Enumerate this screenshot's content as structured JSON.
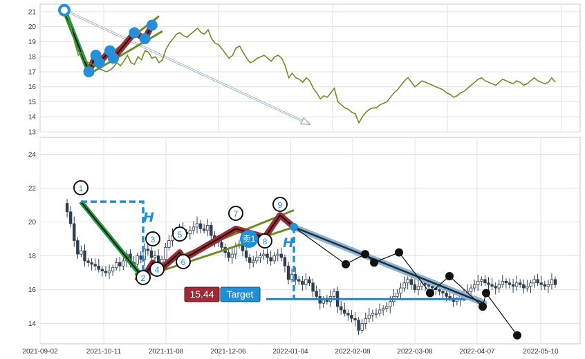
{
  "chart_data": [
    {
      "type": "line",
      "name": "overview",
      "ylim": [
        13,
        21.5
      ],
      "y_ticks": [
        "13",
        "14",
        "15",
        "16",
        "17",
        "18",
        "19",
        "20",
        "21"
      ],
      "grid": true,
      "series_color": "#6b8e23",
      "series": [
        {
          "values": [
            21.1,
            20.6,
            19.9,
            18.9,
            18.1,
            18.3,
            17.7,
            17.6,
            17.5,
            17.4,
            17.2,
            17.1,
            17.0,
            17.1,
            17.3,
            17.6,
            17.4,
            17.7,
            18.1,
            17.6,
            17.5,
            18.0,
            17.8,
            18.4,
            18.3,
            17.9,
            18.0,
            17.6,
            17.8,
            18.5,
            18.9,
            19.2,
            19.5,
            19.6,
            19.4,
            19.3,
            19.5,
            19.7,
            19.9,
            19.6,
            19.5,
            19.8,
            19.2,
            18.9,
            18.8,
            18.5,
            18.2,
            17.9,
            18.1,
            18.6,
            18.7,
            18.3,
            17.9,
            17.6,
            17.7,
            17.9,
            18.0,
            18.1,
            17.9,
            17.7,
            18.0,
            18.1,
            17.9,
            17.4,
            16.6,
            16.9,
            16.6,
            16.5,
            16.3,
            16.6,
            16.4,
            15.9,
            15.6,
            15.2,
            15.4,
            15.3,
            15.6,
            15.9,
            15.0,
            14.8,
            14.6,
            14.5,
            14.3,
            14.2,
            13.6,
            14.0,
            14.3,
            14.5,
            14.6,
            14.6,
            14.8,
            14.9,
            15.0,
            15.3,
            15.6,
            15.8,
            16.1,
            16.4,
            16.6,
            16.3,
            16.0,
            16.2,
            16.4,
            16.3,
            16.2,
            16.1,
            16.0,
            15.9,
            15.8,
            15.6,
            15.5,
            15.3,
            15.4,
            15.6,
            15.7,
            15.9,
            16.1,
            16.3,
            16.5,
            16.6,
            16.4,
            16.3,
            16.2,
            16.1,
            16.3,
            16.5,
            16.4,
            16.3,
            16.2,
            16.4,
            16.3,
            16.1,
            16.2,
            16.4,
            16.6,
            16.4,
            16.3,
            16.2,
            16.3,
            16.6,
            16.3
          ]
        }
      ],
      "annotations": {
        "swing_points": [
          [
            0,
            21.1
          ],
          [
            7,
            17.0
          ],
          [
            9,
            18.1
          ],
          [
            10,
            17.6
          ],
          [
            13,
            18.4
          ],
          [
            14,
            17.9
          ],
          [
            20,
            19.6
          ],
          [
            23,
            19.2
          ],
          [
            25,
            20.1
          ]
        ],
        "arrow": {
          "from_index": 0,
          "from": 21.1,
          "to_index": 70,
          "to": 13.5
        }
      }
    },
    {
      "type": "candlestick",
      "name": "detail",
      "ylim": [
        12.8,
        25
      ],
      "y_ticks": [
        "14",
        "16",
        "18",
        "20",
        "22",
        "24"
      ],
      "x_tick_labels": [
        "2021-09-02",
        "2021-10-11",
        "2021-11-08",
        "2021-12-06",
        "2022-01-04",
        "2022-02-08",
        "2022-03-08",
        "2022-04-07",
        "2022-05-10"
      ],
      "grid": true,
      "wave_points": [
        {
          "label": "1",
          "value": 21.2
        },
        {
          "label": "2",
          "value": 16.7
        },
        {
          "label": "3",
          "value": 17.6
        },
        {
          "label": "4",
          "value": 17.0
        },
        {
          "label": "5",
          "value": 18.2
        },
        {
          "label": "6",
          "value": 17.8
        },
        {
          "label": "7",
          "value": 19.6
        },
        {
          "label": "8",
          "value": 19.1
        },
        {
          "label": "9",
          "value": 20.4
        }
      ],
      "sell_marker": "卖1",
      "measure_label": "H",
      "target": {
        "value": "15.44",
        "label": "Target"
      },
      "downtrend_pivots": [
        19.7,
        17.5,
        18.1,
        17.6,
        18.2,
        15.8,
        16.8,
        15.0,
        15.8,
        13.3
      ]
    }
  ]
}
